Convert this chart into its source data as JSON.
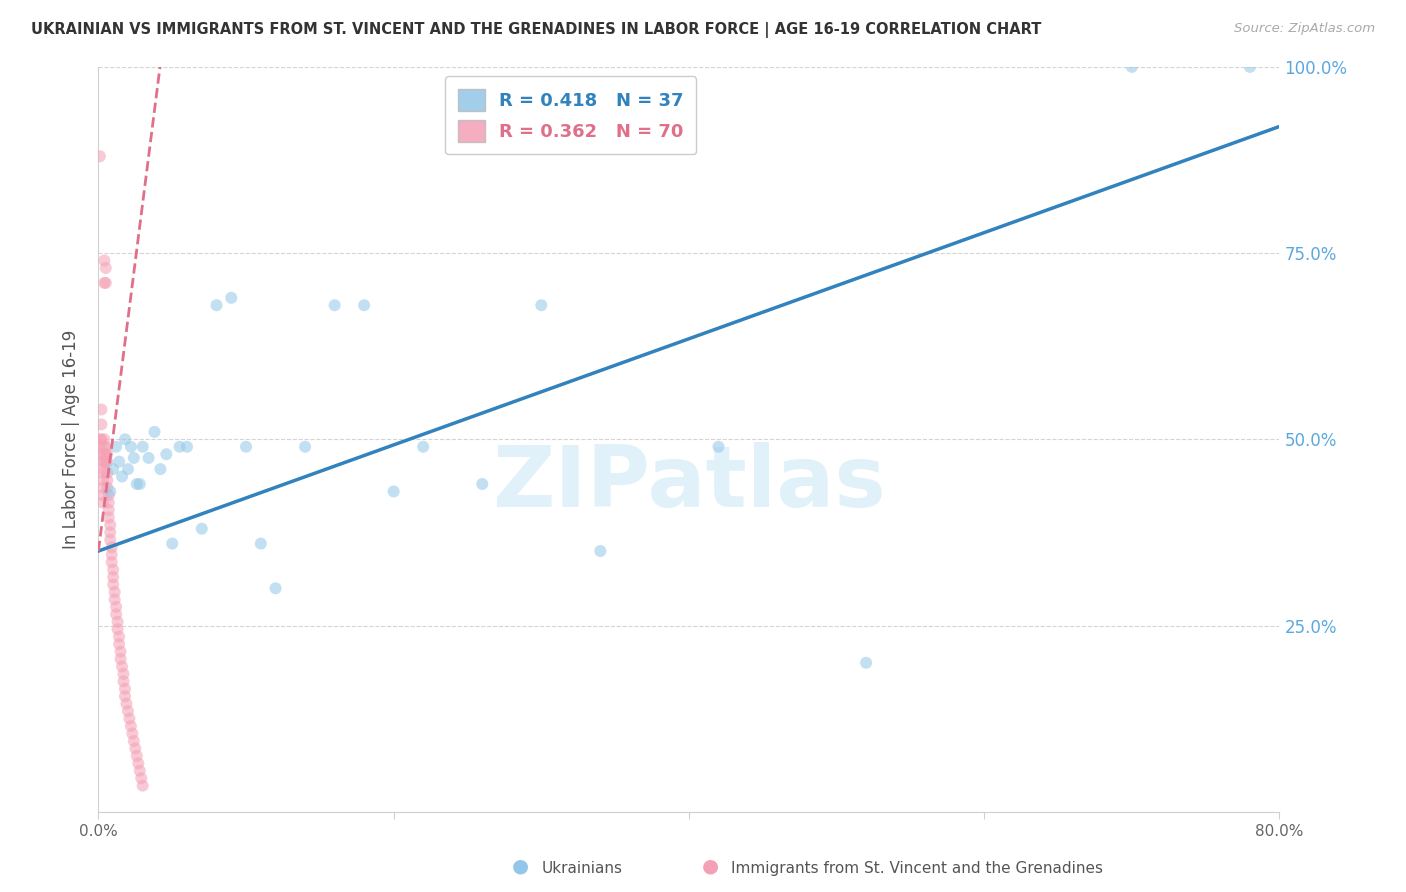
{
  "title": "UKRAINIAN VS IMMIGRANTS FROM ST. VINCENT AND THE GRENADINES IN LABOR FORCE | AGE 16-19 CORRELATION CHART",
  "source": "Source: ZipAtlas.com",
  "ylabel": "In Labor Force | Age 16-19",
  "watermark": "ZIPatlas",
  "xlim": [
    0.0,
    0.8
  ],
  "ylim": [
    0.0,
    1.0
  ],
  "right_y_ticks": [
    0.0,
    0.25,
    0.5,
    0.75,
    1.0
  ],
  "right_y_labels": [
    "",
    "25.0%",
    "50.0%",
    "75.0%",
    "100.0%"
  ],
  "x_ticks": [
    0.0,
    0.2,
    0.4,
    0.6,
    0.8
  ],
  "x_tick_labels": [
    "0.0%",
    "",
    "",
    "",
    "80.0%"
  ],
  "blue_color": "#93c6e8",
  "pink_color": "#f4a0b5",
  "blue_line_color": "#3182bd",
  "pink_line_color": "#e0708a",
  "right_axis_color": "#5ba8e0",
  "grid_color": "#d0d0d0",
  "blue_scatter_x": [
    0.008,
    0.01,
    0.012,
    0.014,
    0.016,
    0.018,
    0.02,
    0.022,
    0.024,
    0.026,
    0.028,
    0.03,
    0.034,
    0.038,
    0.042,
    0.046,
    0.05,
    0.055,
    0.06,
    0.07,
    0.08,
    0.09,
    0.1,
    0.11,
    0.12,
    0.14,
    0.16,
    0.18,
    0.2,
    0.22,
    0.26,
    0.3,
    0.34,
    0.42,
    0.52,
    0.7,
    0.78
  ],
  "blue_scatter_y": [
    0.43,
    0.46,
    0.49,
    0.47,
    0.45,
    0.5,
    0.46,
    0.49,
    0.475,
    0.44,
    0.44,
    0.49,
    0.475,
    0.51,
    0.46,
    0.48,
    0.36,
    0.49,
    0.49,
    0.38,
    0.68,
    0.69,
    0.49,
    0.36,
    0.3,
    0.49,
    0.68,
    0.68,
    0.43,
    0.49,
    0.44,
    0.68,
    0.35,
    0.49,
    0.2,
    1.0,
    1.0
  ],
  "pink_scatter_x": [
    0.001,
    0.001,
    0.001,
    0.002,
    0.002,
    0.002,
    0.002,
    0.003,
    0.003,
    0.003,
    0.003,
    0.003,
    0.003,
    0.003,
    0.004,
    0.004,
    0.004,
    0.004,
    0.004,
    0.004,
    0.005,
    0.005,
    0.005,
    0.005,
    0.005,
    0.006,
    0.006,
    0.006,
    0.006,
    0.006,
    0.007,
    0.007,
    0.007,
    0.007,
    0.008,
    0.008,
    0.008,
    0.009,
    0.009,
    0.009,
    0.01,
    0.01,
    0.01,
    0.011,
    0.011,
    0.012,
    0.012,
    0.013,
    0.013,
    0.014,
    0.014,
    0.015,
    0.015,
    0.016,
    0.017,
    0.017,
    0.018,
    0.018,
    0.019,
    0.02,
    0.021,
    0.022,
    0.023,
    0.024,
    0.025,
    0.026,
    0.027,
    0.028,
    0.029,
    0.03
  ],
  "pink_scatter_y": [
    0.88,
    0.5,
    0.49,
    0.54,
    0.52,
    0.5,
    0.48,
    0.47,
    0.46,
    0.455,
    0.445,
    0.435,
    0.425,
    0.415,
    0.74,
    0.71,
    0.5,
    0.49,
    0.48,
    0.47,
    0.73,
    0.71,
    0.49,
    0.48,
    0.47,
    0.48,
    0.47,
    0.455,
    0.445,
    0.435,
    0.425,
    0.415,
    0.405,
    0.395,
    0.385,
    0.375,
    0.365,
    0.355,
    0.345,
    0.335,
    0.325,
    0.315,
    0.305,
    0.295,
    0.285,
    0.275,
    0.265,
    0.255,
    0.245,
    0.235,
    0.225,
    0.215,
    0.205,
    0.195,
    0.185,
    0.175,
    0.165,
    0.155,
    0.145,
    0.135,
    0.125,
    0.115,
    0.105,
    0.095,
    0.085,
    0.075,
    0.065,
    0.055,
    0.045,
    0.035
  ],
  "blue_line_x": [
    0.0,
    0.8
  ],
  "blue_line_y": [
    0.35,
    0.92
  ],
  "pink_line_x": [
    0.0,
    0.043
  ],
  "pink_line_y": [
    0.35,
    1.02
  ],
  "marker_size": 75,
  "marker_alpha": 0.55
}
